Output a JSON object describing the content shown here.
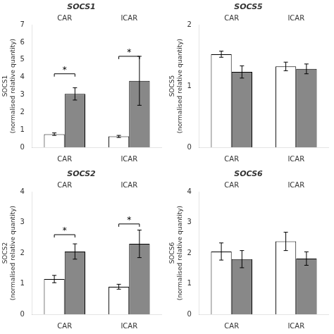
{
  "chart_data": [
    {
      "type": "bar",
      "title": "SOCS1",
      "ylabel": [
        "SOCS1",
        "(normalised relative quantity)"
      ],
      "categories": [
        "CAR",
        "ICAR"
      ],
      "series": [
        {
          "color": "#ffffff",
          "values": [
            0.75,
            0.62
          ],
          "errors": [
            0.07,
            0.06
          ]
        },
        {
          "color": "#888888",
          "values": [
            3.05,
            3.8
          ],
          "errors": [
            0.35,
            1.4
          ]
        }
      ],
      "brackets": [
        {
          "category": "CAR",
          "y": 4.2,
          "label": "*"
        },
        {
          "category": "ICAR",
          "y": 5.2,
          "label": "*"
        }
      ],
      "annotations": [
        {
          "text": "CAR",
          "x": "CAR"
        },
        {
          "text": "ICAR",
          "x": "ICAR"
        }
      ],
      "ylim": [
        0,
        7
      ],
      "yticks": [
        0,
        1,
        2,
        3,
        4,
        5,
        6,
        7
      ],
      "grid": false
    },
    {
      "type": "bar",
      "title": "SOCS5",
      "ylabel": [
        "SOCS5",
        "(normalised relative quantity)"
      ],
      "categories": [
        "CAR",
        "ICAR"
      ],
      "series": [
        {
          "color": "#ffffff",
          "values": [
            1.52,
            1.32
          ],
          "errors": [
            0.05,
            0.07
          ]
        },
        {
          "color": "#888888",
          "values": [
            1.23,
            1.28
          ],
          "errors": [
            0.1,
            0.08
          ]
        }
      ],
      "brackets": [],
      "annotations": [
        {
          "text": "CAR",
          "x": "CAR"
        },
        {
          "text": "ICAR",
          "x": "ICAR"
        }
      ],
      "ylim": [
        0,
        2
      ],
      "yticks": [
        0,
        1,
        2
      ],
      "grid": false
    },
    {
      "type": "bar",
      "title": "SOCS2",
      "ylabel": [
        "SOCS2",
        "(normalised relative quantity)"
      ],
      "categories": [
        "CAR",
        "ICAR"
      ],
      "series": [
        {
          "color": "#ffffff",
          "values": [
            1.15,
            0.9
          ],
          "errors": [
            0.12,
            0.08
          ]
        },
        {
          "color": "#888888",
          "values": [
            2.05,
            2.3
          ],
          "errors": [
            0.25,
            0.45
          ]
        }
      ],
      "brackets": [
        {
          "category": "CAR",
          "y": 2.6,
          "label": "*"
        },
        {
          "category": "ICAR",
          "y": 2.95,
          "label": "*"
        }
      ],
      "annotations": [
        {
          "text": "CAR",
          "x": "CAR"
        },
        {
          "text": "ICAR",
          "x": "ICAR"
        }
      ],
      "ylim": [
        0,
        4
      ],
      "yticks": [
        0,
        1,
        2,
        3,
        4
      ],
      "grid": false
    },
    {
      "type": "bar",
      "title": "SOCS6",
      "ylabel": [
        "SOCS6",
        "(normalised relative quantity)"
      ],
      "categories": [
        "CAR",
        "ICAR"
      ],
      "series": [
        {
          "color": "#ffffff",
          "values": [
            2.05,
            2.38
          ],
          "errors": [
            0.28,
            0.3
          ]
        },
        {
          "color": "#888888",
          "values": [
            1.8,
            1.82
          ],
          "errors": [
            0.28,
            0.22
          ]
        }
      ],
      "brackets": [],
      "annotations": [
        {
          "text": "CAR",
          "x": "CAR"
        },
        {
          "text": "ICAR",
          "x": "ICAR"
        }
      ],
      "ylim": [
        0,
        4
      ],
      "yticks": [
        0,
        1,
        2,
        3,
        4
      ],
      "grid": false
    }
  ]
}
